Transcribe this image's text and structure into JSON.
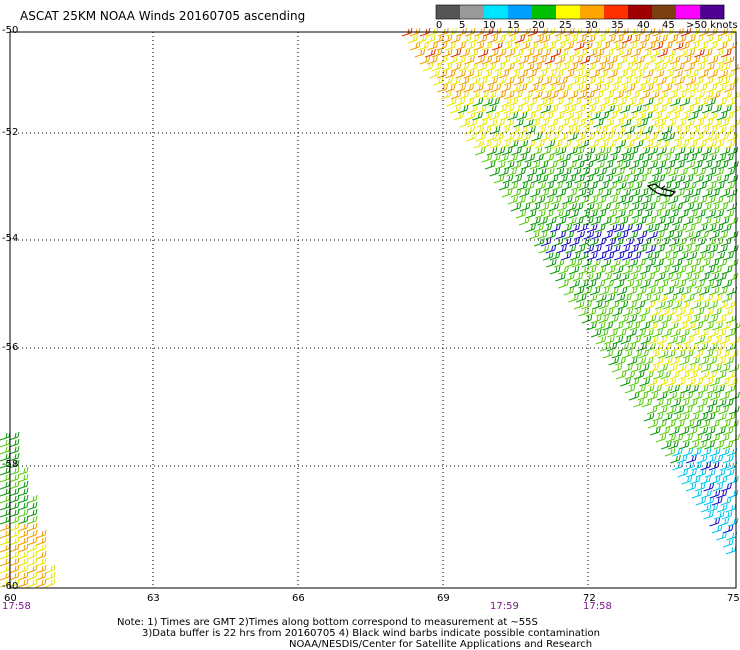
{
  "title": "ASCAT 25KM NOAA Winds 20160705 ascending",
  "colorbar": {
    "labels": [
      "0",
      "5",
      "10",
      "15",
      "20",
      "25",
      "30",
      "35",
      "40",
      "45",
      ">50 knots"
    ],
    "colors": [
      "#555555",
      "#9a9a9a",
      "#00e5ff",
      "#00a0ff",
      "#00c000",
      "#ffff00",
      "#ffa500",
      "#ff3000",
      "#a00000",
      "#7a4010",
      "#ff00ff",
      "#500090"
    ]
  },
  "map": {
    "lat_labels": [
      "-50",
      "-52",
      "-54",
      "-56",
      "-58",
      "-60"
    ],
    "lon_labels": [
      "60",
      "63",
      "66",
      "69",
      "72",
      "75"
    ],
    "time_labels": [
      "17:58",
      "17:59",
      "17:58"
    ]
  },
  "notes": {
    "line1": "Note: 1) Times are GMT 2)Times along bottom correspond to measurement at ~55S",
    "line2": "3)Data buffer is 22 hrs from 20160705 4) Black wind barbs indicate possible contamination",
    "line3": "NOAA/NESDIS/Center for Satellite Applications and Research"
  }
}
